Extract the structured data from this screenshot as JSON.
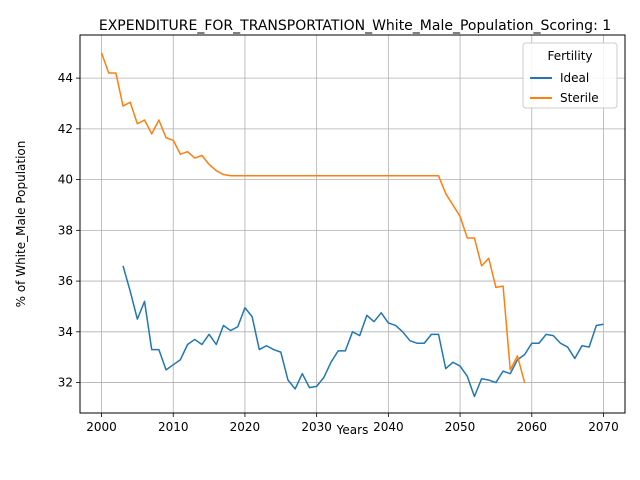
{
  "chart_data": {
    "type": "line",
    "title": "EXPENDITURE_FOR_TRANSPORTATION_White_Male_Population_Scoring: 1",
    "xlabel": "Years",
    "ylabel": "% of White_Male Population",
    "xlim": [
      1997,
      2073
    ],
    "ylim": [
      30.8,
      45.7
    ],
    "xticks": [
      2000,
      2010,
      2020,
      2030,
      2040,
      2050,
      2060,
      2070
    ],
    "yticks": [
      32,
      34,
      36,
      38,
      40,
      42,
      44
    ],
    "grid": true,
    "legend": {
      "title": "Fertility",
      "placement": "top-right"
    },
    "series": [
      {
        "name": "Ideal",
        "color": "#1f77b4",
        "x": [
          2003,
          2004,
          2005,
          2006,
          2007,
          2008,
          2009,
          2010,
          2011,
          2012,
          2013,
          2014,
          2015,
          2016,
          2017,
          2018,
          2019,
          2020,
          2021,
          2022,
          2023,
          2024,
          2025,
          2026,
          2027,
          2028,
          2029,
          2030,
          2031,
          2032,
          2033,
          2034,
          2035,
          2036,
          2037,
          2038,
          2039,
          2040,
          2041,
          2042,
          2043,
          2044,
          2045,
          2046,
          2047,
          2048,
          2049,
          2050,
          2051,
          2052,
          2053,
          2054,
          2055,
          2056,
          2057,
          2058,
          2059,
          2060,
          2061,
          2062,
          2063,
          2064,
          2065,
          2066,
          2067,
          2068,
          2069,
          2070
        ],
        "values": [
          36.6,
          35.6,
          34.5,
          35.2,
          33.3,
          33.3,
          32.5,
          32.7,
          32.9,
          33.5,
          33.7,
          33.5,
          33.9,
          33.5,
          34.25,
          34.05,
          34.2,
          34.95,
          34.6,
          33.3,
          33.45,
          33.3,
          33.2,
          32.1,
          31.75,
          32.35,
          31.8,
          31.85,
          32.2,
          32.8,
          33.25,
          33.25,
          34.0,
          33.85,
          34.65,
          34.4,
          34.75,
          34.35,
          34.25,
          34.0,
          33.65,
          33.55,
          33.55,
          33.9,
          33.9,
          32.55,
          32.8,
          32.65,
          32.25,
          31.45,
          32.15,
          32.1,
          32.0,
          32.45,
          32.35,
          32.9,
          33.1,
          33.55,
          33.55,
          33.9,
          33.85,
          33.55,
          33.4,
          32.95,
          33.45,
          33.4,
          34.25,
          34.3
        ]
      },
      {
        "name": "Sterile",
        "color": "#ff7f0e",
        "x": [
          2000,
          2001,
          2002,
          2003,
          2004,
          2005,
          2006,
          2007,
          2008,
          2009,
          2010,
          2011,
          2012,
          2013,
          2014,
          2015,
          2016,
          2017,
          2018,
          2019,
          2020,
          2025,
          2030,
          2035,
          2040,
          2045,
          2047,
          2048,
          2049,
          2050,
          2051,
          2052,
          2053,
          2054,
          2055,
          2056,
          2057,
          2058,
          2059
        ],
        "values": [
          45.0,
          44.2,
          44.2,
          42.9,
          43.05,
          42.2,
          42.35,
          41.8,
          42.35,
          41.65,
          41.55,
          41.0,
          41.1,
          40.85,
          40.95,
          40.6,
          40.35,
          40.2,
          40.15,
          40.15,
          40.15,
          40.15,
          40.15,
          40.15,
          40.15,
          40.15,
          40.15,
          39.45,
          39.0,
          38.55,
          37.7,
          37.7,
          36.6,
          36.9,
          35.75,
          35.8,
          32.5,
          33.05,
          32.0
        ]
      }
    ]
  }
}
